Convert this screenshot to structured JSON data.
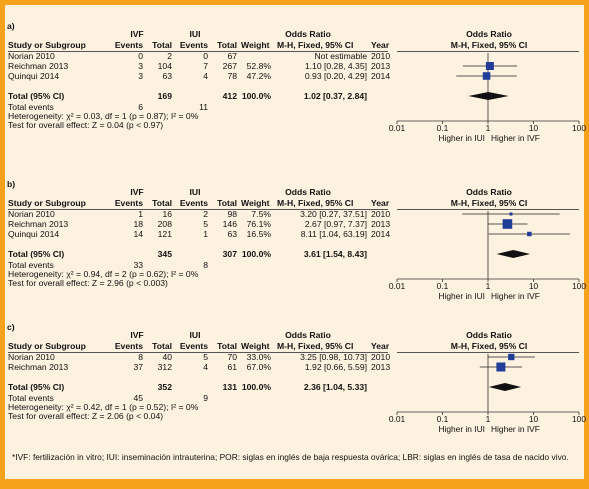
{
  "footnote": "*IVF: fertilización in vitro; IUI: inseminación intrauterina; POR: siglas en inglés de baja respuesta ovárica; LBR: siglas en inglés de tasa de nacido vivo.",
  "headers": {
    "group1": "IVF",
    "group2": "IUI",
    "odds_ratio": "Odds Ratio",
    "method": "M-H, Fixed, 95% CI",
    "study": "Study or Subgroup",
    "events": "Events",
    "total": "Total",
    "weight": "Weight",
    "weight_method": "M-H, Fixed, 95% CI",
    "year": "Year"
  },
  "axis": {
    "ticks": [
      "0.01",
      "0.1",
      "1",
      "10",
      "100"
    ],
    "favours_left": "Higher in IUI",
    "favours_right": "Higher in IVF",
    "scale": "log"
  },
  "colors": {
    "background": "#fdf1df",
    "border": "#f6a21a",
    "marker": "#1f3d99"
  },
  "chart_data": [
    {
      "type": "forest",
      "label": "a)",
      "studies": [
        {
          "name": "Norian 2010",
          "ivf_events": "0",
          "ivf_total": "2",
          "iui_events": "0",
          "iui_total": "67",
          "weight": "",
          "or_text": "Not estimable",
          "year": "2010",
          "or": null,
          "lo": null,
          "hi": null,
          "w": 0
        },
        {
          "name": "Reichman 2013",
          "ivf_events": "3",
          "ivf_total": "104",
          "iui_events": "7",
          "iui_total": "267",
          "weight": "52.8%",
          "or_text": "1.10 [0.28, 4.35]",
          "year": "2013",
          "or": 1.1,
          "lo": 0.28,
          "hi": 4.35,
          "w": 52.8
        },
        {
          "name": "Quinqui 2014",
          "ivf_events": "3",
          "ivf_total": "63",
          "iui_events": "4",
          "iui_total": "78",
          "weight": "47.2%",
          "or_text": "0.93 [0.20, 4.29]",
          "year": "2014",
          "or": 0.93,
          "lo": 0.2,
          "hi": 4.29,
          "w": 47.2
        }
      ],
      "total": {
        "name": "Total (95% CI)",
        "ivf_total": "169",
        "iui_total": "412",
        "weight": "100.0%",
        "or_text": "1.02 [0.37, 2.84]",
        "or": 1.02,
        "lo": 0.37,
        "hi": 2.84
      },
      "total_events": {
        "name": "Total events",
        "ivf": "6",
        "iui": "11"
      },
      "heterogeneity": "Heterogeneity: χ² = 0.03, df = 1 (p = 0.87); I² = 0%",
      "overall_effect": "Test for overall effect: Z = 0.04 (p < 0.97)"
    },
    {
      "type": "forest",
      "label": "b)",
      "studies": [
        {
          "name": "Norian 2010",
          "ivf_events": "1",
          "ivf_total": "16",
          "iui_events": "2",
          "iui_total": "98",
          "weight": "7.5%",
          "or_text": "3.20 [0.27, 37.51]",
          "year": "2010",
          "or": 3.2,
          "lo": 0.27,
          "hi": 37.51,
          "w": 7.5
        },
        {
          "name": "Reichman 2013",
          "ivf_events": "18",
          "ivf_total": "208",
          "iui_events": "5",
          "iui_total": "146",
          "weight": "76.1%",
          "or_text": "2.67 [0.97, 7.37]",
          "year": "2013",
          "or": 2.67,
          "lo": 0.97,
          "hi": 7.37,
          "w": 76.1
        },
        {
          "name": "Quinqui 2014",
          "ivf_events": "14",
          "ivf_total": "121",
          "iui_events": "1",
          "iui_total": "63",
          "weight": "16.5%",
          "or_text": "8.11 [1.04, 63.19]",
          "year": "2014",
          "or": 8.11,
          "lo": 1.04,
          "hi": 63.19,
          "w": 16.5
        }
      ],
      "total": {
        "name": "Total (95% CI)",
        "ivf_total": "345",
        "iui_total": "307",
        "weight": "100.0%",
        "or_text": "3.61 [1.54, 8.43]",
        "or": 3.61,
        "lo": 1.54,
        "hi": 8.43
      },
      "total_events": {
        "name": "Total events",
        "ivf": "33",
        "iui": "8"
      },
      "heterogeneity": "Heterogeneity: χ² = 0.94, df = 2 (p = 0.62); I² = 0%",
      "overall_effect": "Test for overall effect: Z = 2.96 (p < 0.003)"
    },
    {
      "type": "forest",
      "label": "c)",
      "studies": [
        {
          "name": "Norian 2010",
          "ivf_events": "8",
          "ivf_total": "40",
          "iui_events": "5",
          "iui_total": "70",
          "weight": "33.0%",
          "or_text": "3.25 [0.98, 10.73]",
          "year": "2010",
          "or": 3.25,
          "lo": 0.98,
          "hi": 10.73,
          "w": 33.0
        },
        {
          "name": "Reichman 2013",
          "ivf_events": "37",
          "ivf_total": "312",
          "iui_events": "4",
          "iui_total": "61",
          "weight": "67.0%",
          "or_text": "1.92 [0.66, 5.59]",
          "year": "2013",
          "or": 1.92,
          "lo": 0.66,
          "hi": 5.59,
          "w": 67.0
        }
      ],
      "total": {
        "name": "Total (95% CI)",
        "ivf_total": "352",
        "iui_total": "131",
        "weight": "100.0%",
        "or_text": "2.36 [1.04, 5.33]",
        "or": 2.36,
        "lo": 1.04,
        "hi": 5.33
      },
      "total_events": {
        "name": "Total events",
        "ivf": "45",
        "iui": "9"
      },
      "heterogeneity": "Heterogeneity: χ² = 0.42, df = 1 (p = 0.52); I² = 0%",
      "overall_effect": "Test for overall effect: Z = 2.06 (p < 0.04)"
    }
  ]
}
